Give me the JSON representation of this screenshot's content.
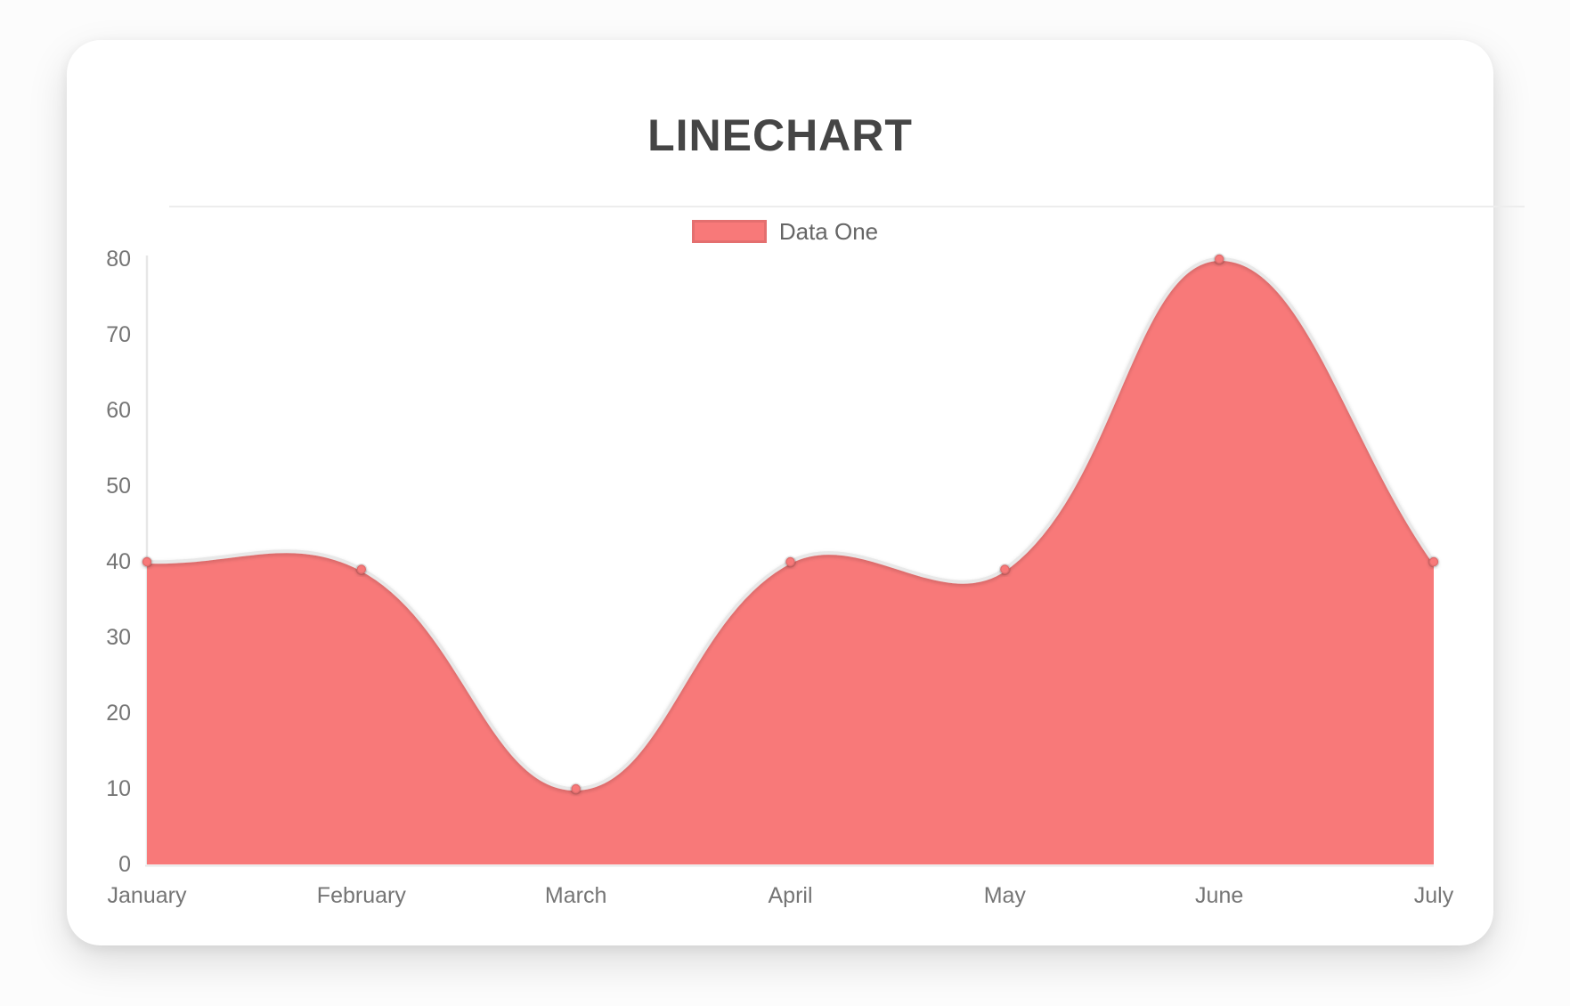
{
  "chart_data": {
    "type": "line",
    "title": "LINECHART",
    "categories": [
      "January",
      "February",
      "March",
      "April",
      "May",
      "June",
      "July"
    ],
    "series": [
      {
        "name": "Data One",
        "values": [
          40,
          39,
          10,
          40,
          39,
          80,
          40
        ]
      }
    ],
    "ylim": [
      0,
      80
    ],
    "yticks": [
      80,
      70,
      60,
      50,
      40,
      30,
      20,
      10,
      0
    ],
    "legend_position": "top",
    "grid": false,
    "smooth": true,
    "line_tension": 0.4,
    "colors": {
      "fill": "#f87979",
      "line": "#e8e8e8",
      "point_fill": "#f87979",
      "point_border": "rgba(0,0,0,0.10)",
      "axis": "#e7e7e7",
      "tick_text": "#757575",
      "title_text": "#454545",
      "legend_text": "#666666"
    }
  }
}
